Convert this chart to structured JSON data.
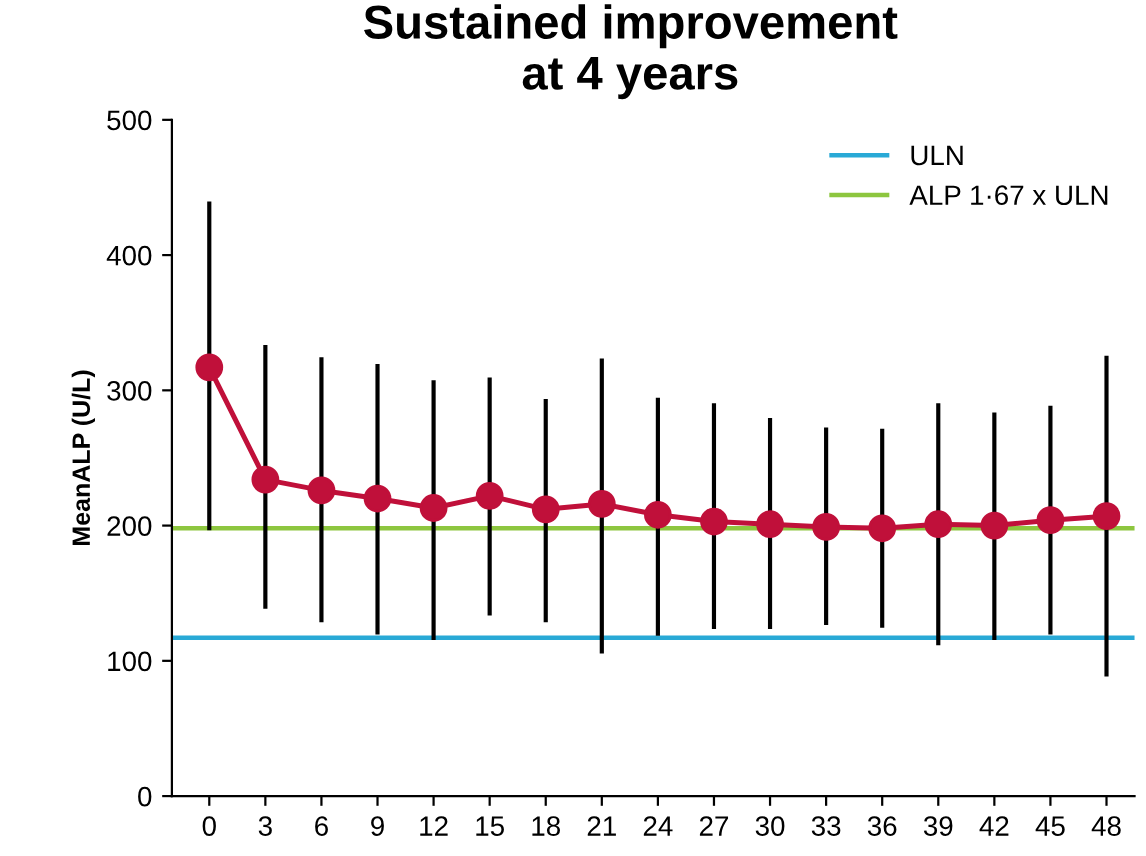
{
  "chart_data": {
    "type": "line",
    "title": "Sustained improvement\nat 4 years",
    "ylabel": "MeanALP (U/L)",
    "x": [
      0,
      3,
      6,
      9,
      12,
      15,
      18,
      21,
      24,
      27,
      30,
      33,
      36,
      39,
      42,
      45,
      48
    ],
    "series": [
      {
        "color": "#c0103a",
        "values": [
          317,
          234,
          226,
          220,
          213,
          222,
          212,
          216,
          208,
          203,
          201,
          199,
          198,
          201,
          200,
          204,
          207
        ],
        "errors": [
          [
            198,
            438
          ],
          [
            140,
            332
          ],
          [
            130,
            323
          ],
          [
            121,
            318
          ],
          [
            117,
            306
          ],
          [
            135,
            308
          ],
          [
            130,
            292
          ],
          [
            107,
            322
          ],
          [
            120,
            293
          ],
          [
            125,
            289
          ],
          [
            125,
            278
          ],
          [
            128,
            271
          ],
          [
            126,
            270
          ],
          [
            113,
            289
          ],
          [
            117,
            282
          ],
          [
            121,
            287
          ],
          [
            90,
            324
          ]
        ]
      }
    ],
    "ref_lines": [
      {
        "axis": "y",
        "value": 117,
        "label": "ULN",
        "color": "#29a9d6"
      },
      {
        "axis": "y",
        "value": 198,
        "label": "ALP 1·67 x ULN",
        "color": "#8dc63f"
      }
    ],
    "xlim": [
      -2,
      49.5
    ],
    "xticks": [
      0,
      3,
      6,
      9,
      12,
      15,
      18,
      21,
      24,
      27,
      30,
      33,
      36,
      39,
      42,
      45,
      48
    ],
    "ylim": [
      0,
      500
    ],
    "yticks": [
      0,
      100,
      200,
      300,
      400,
      500
    ],
    "marker": "circle",
    "line_style": "solid",
    "grid": false,
    "legend": "top right"
  }
}
